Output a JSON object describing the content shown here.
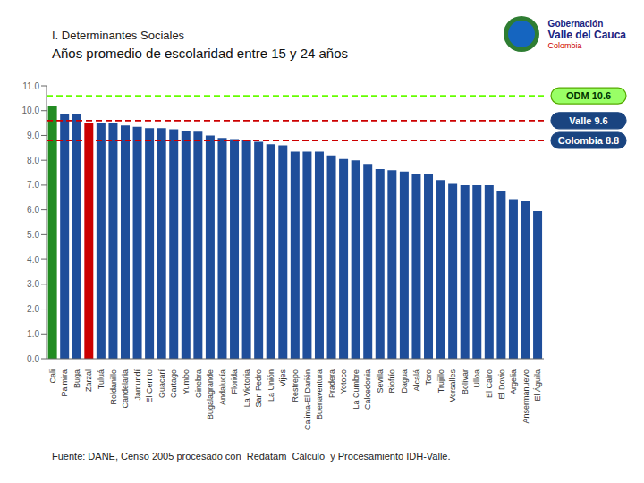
{
  "chart_data": {
    "type": "bar",
    "title": "I. Determinantes Sociales",
    "subtitle": "Años promedio de escolaridad entre 15 y 24 años",
    "categories": [
      "Cali",
      "Palmira",
      "Buga",
      "Zarzal",
      "Tuluá",
      "Roldanillo",
      "Candelaria",
      "Jamundí",
      "El Cerrito",
      "Guacarí",
      "Cartago",
      "Yumbo",
      "Ginebra",
      "Bugalagrande",
      "Andalucía",
      "Flo­ri­da",
      "La Victoria",
      "San Pedro",
      "La Unión",
      "Vijes",
      "Restrepo",
      "Calima-El Da­rién",
      "Buenaventura",
      "Pradera",
      "Yotoco",
      "La Cumbre",
      "Calcedonia",
      "Sevilla",
      "Riofrío",
      "Dagua",
      "Alcalá",
      "Toro",
      "Trujillo",
      "Versalles",
      "Bolívar",
      "Ulloa",
      "El Cairo",
      "El Dovio",
      "Argelia",
      "Ansermanuevo",
      "El Águila"
    ],
    "values": [
      10.2,
      9.85,
      9.85,
      9.5,
      9.5,
      9.5,
      9.4,
      9.35,
      9.3,
      9.3,
      9.25,
      9.2,
      9.15,
      9.0,
      8.9,
      8.85,
      8.8,
      8.75,
      8.65,
      8.6,
      8.35,
      8.35,
      8.35,
      8.2,
      8.05,
      8.0,
      7.85,
      7.65,
      7.6,
      7.55,
      7.45,
      7.45,
      7.2,
      7.05,
      7.0,
      7.0,
      7.0,
      6.75,
      6.4,
      6.35,
      5.95
    ],
    "colors": [
      "#228B22",
      "#1F4E9A",
      "#1F4E9A",
      "#CC0000",
      "#1F4E9A",
      "#1F4E9A",
      "#1F4E9A",
      "#1F4E9A",
      "#1F4E9A",
      "#1F4E9A",
      "#1F4E9A",
      "#1F4E9A",
      "#1F4E9A",
      "#1F4E9A",
      "#1F4E9A",
      "#1F4E9A",
      "#1F4E9A",
      "#1F4E9A",
      "#1F4E9A",
      "#1F4E9A",
      "#1F4E9A",
      "#1F4E9A",
      "#1F4E9A",
      "#1F4E9A",
      "#1F4E9A",
      "#1F4E9A",
      "#1F4E9A",
      "#1F4E9A",
      "#1F4E9A",
      "#1F4E9A",
      "#1F4E9A",
      "#1F4E9A",
      "#1F4E9A",
      "#1F4E9A",
      "#1F4E9A",
      "#1F4E9A",
      "#1F4E9A",
      "#1F4E9A",
      "#1F4E9A",
      "#1F4E9A",
      "#1F4E9A"
    ],
    "ylim": [
      0,
      11
    ],
    "yticks": [
      {
        "value": 0,
        "label": "0.0"
      },
      {
        "value": 1,
        "label": "1.0"
      },
      {
        "value": 2,
        "label": "2.0"
      },
      {
        "value": 3,
        "label": "3.0"
      },
      {
        "value": 4,
        "label": "4.0"
      },
      {
        "value": 5,
        "label": "5.0"
      },
      {
        "value": 6,
        "label": "6.0"
      },
      {
        "value": 7,
        "label": "7.0"
      },
      {
        "value": 8,
        "label": "8.0"
      },
      {
        "value": 9,
        "label": "9.0"
      },
      {
        "value": 10,
        "label": "10.0"
      },
      {
        "value": 11,
        "label": "11.0"
      }
    ],
    "grid": false,
    "reference_lines": [
      {
        "value": 10.6,
        "label": "ODM 10.6",
        "color": "#66FF00"
      },
      {
        "value": 9.6,
        "label": "Valle 9.6",
        "color": "#CC0000"
      },
      {
        "value": 8.8,
        "label": "Colombia 8.8",
        "color": "#CC0000"
      }
    ],
    "annotations": [
      "Gobernación",
      "Valle del Cauca",
      "Colombia"
    ],
    "footer": "Fuente: DANE, Censo 2005 procesado con  Redatam  Cálculo  y Procesamiento IDH-Valle."
  }
}
